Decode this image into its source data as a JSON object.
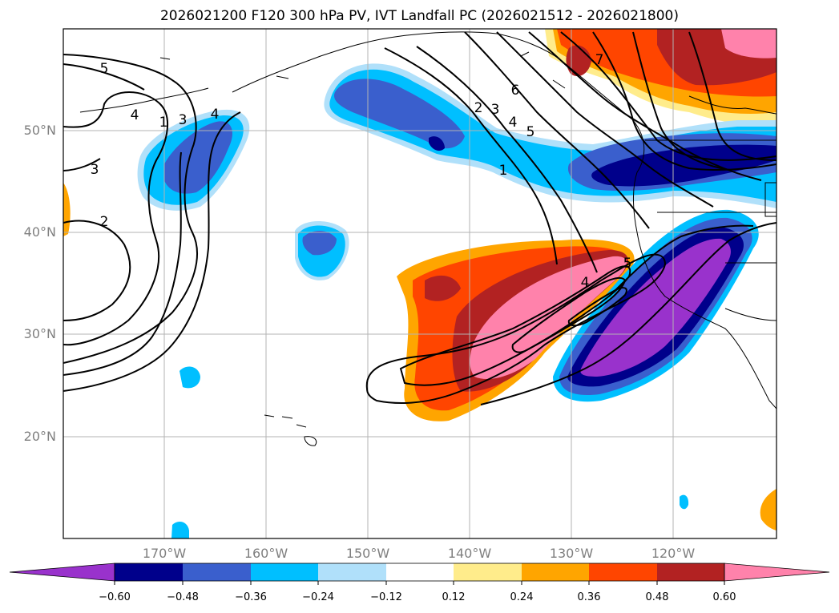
{
  "title": "2026021200 F120 300 hPa PV, IVT Landfall PC (2026021512 - 2026021800)",
  "axes": {
    "lat_labels": [
      "20°N",
      "30°N",
      "40°N",
      "50°N"
    ],
    "lon_labels": [
      "170°W",
      "160°W",
      "150°W",
      "140°W",
      "130°W",
      "120°W"
    ]
  },
  "colorbar": {
    "ticks": [
      "−0.60",
      "−0.48",
      "−0.36",
      "−0.24",
      "−0.12",
      "0.12",
      "0.24",
      "0.36",
      "0.48",
      "0.60"
    ],
    "colors": [
      "#9932cc",
      "#00008b",
      "#3a5fcd",
      "#00bfff",
      "#b0e0fa",
      "#ffffff",
      "#ffec8b",
      "#ffa500",
      "#ff4500",
      "#b22222",
      "#ff82ab"
    ]
  },
  "contour_labels": [
    "5",
    "4",
    "3",
    "2",
    "1",
    "3",
    "4",
    "2",
    "3",
    "4",
    "5",
    "6",
    "7",
    "1",
    "4",
    "5"
  ]
}
